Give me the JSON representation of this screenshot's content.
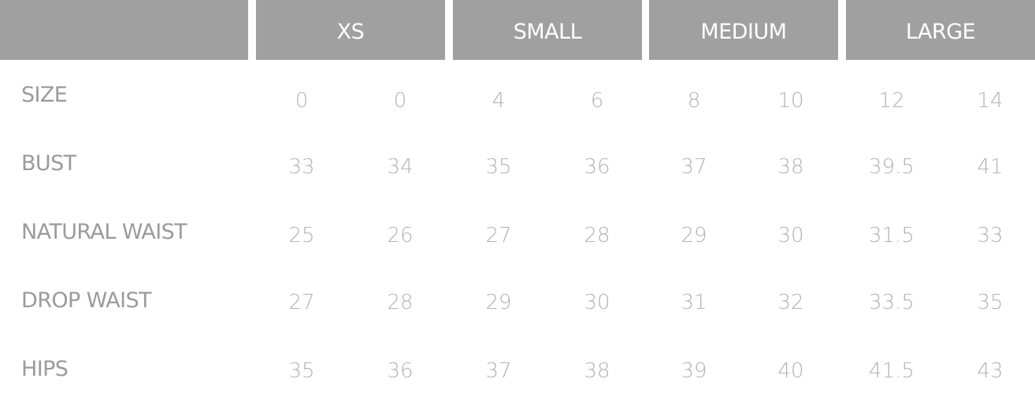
{
  "header": {
    "blank": "",
    "groups": [
      "XS",
      "SMALL",
      "MEDIUM",
      "LARGE"
    ]
  },
  "rows": [
    {
      "label": "SIZE",
      "values": [
        "0",
        "0",
        "4",
        "6",
        "8",
        "10",
        "12",
        "14"
      ]
    },
    {
      "label": "BUST",
      "values": [
        "33",
        "34",
        "35",
        "36",
        "37",
        "38",
        "39.5",
        "41"
      ]
    },
    {
      "label": "NATURAL WAIST",
      "values": [
        "25",
        "26",
        "27",
        "28",
        "29",
        "30",
        "31.5",
        "33"
      ]
    },
    {
      "label": "DROP WAIST",
      "values": [
        "27",
        "28",
        "29",
        "30",
        "31",
        "32",
        "33.5",
        "35"
      ]
    },
    {
      "label": "HIPS",
      "values": [
        "35",
        "36",
        "37",
        "38",
        "39",
        "40",
        "41.5",
        "43"
      ]
    }
  ],
  "colors": {
    "header_bg": "#a0a0a0",
    "header_text": "#ffffff",
    "label_text": "#9b9b9b",
    "value_text": "#b3b3b3"
  }
}
